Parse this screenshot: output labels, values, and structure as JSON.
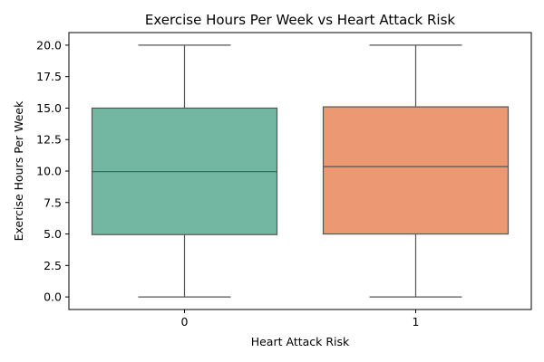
{
  "chart_data": {
    "type": "box",
    "title": "Exercise Hours Per Week vs Heart Attack Risk",
    "xlabel": "Heart Attack Risk",
    "ylabel": "Exercise Hours Per Week",
    "ylim": [
      -1.0,
      21.0
    ],
    "yticks": [
      "0.0",
      "2.5",
      "5.0",
      "7.5",
      "10.0",
      "12.5",
      "15.0",
      "17.5",
      "20.0"
    ],
    "categories": [
      "0",
      "1"
    ],
    "boxes": [
      {
        "category": "0",
        "whisker_low": 0.0,
        "q1": 4.95,
        "median": 9.95,
        "q3": 15.0,
        "whisker_high": 20.0,
        "color": "#73b6a1"
      },
      {
        "category": "1",
        "whisker_low": 0.0,
        "q1": 5.0,
        "median": 10.35,
        "q3": 15.1,
        "whisker_high": 20.0,
        "color": "#ec9873"
      }
    ],
    "grid": false,
    "line_color": "#555555"
  }
}
